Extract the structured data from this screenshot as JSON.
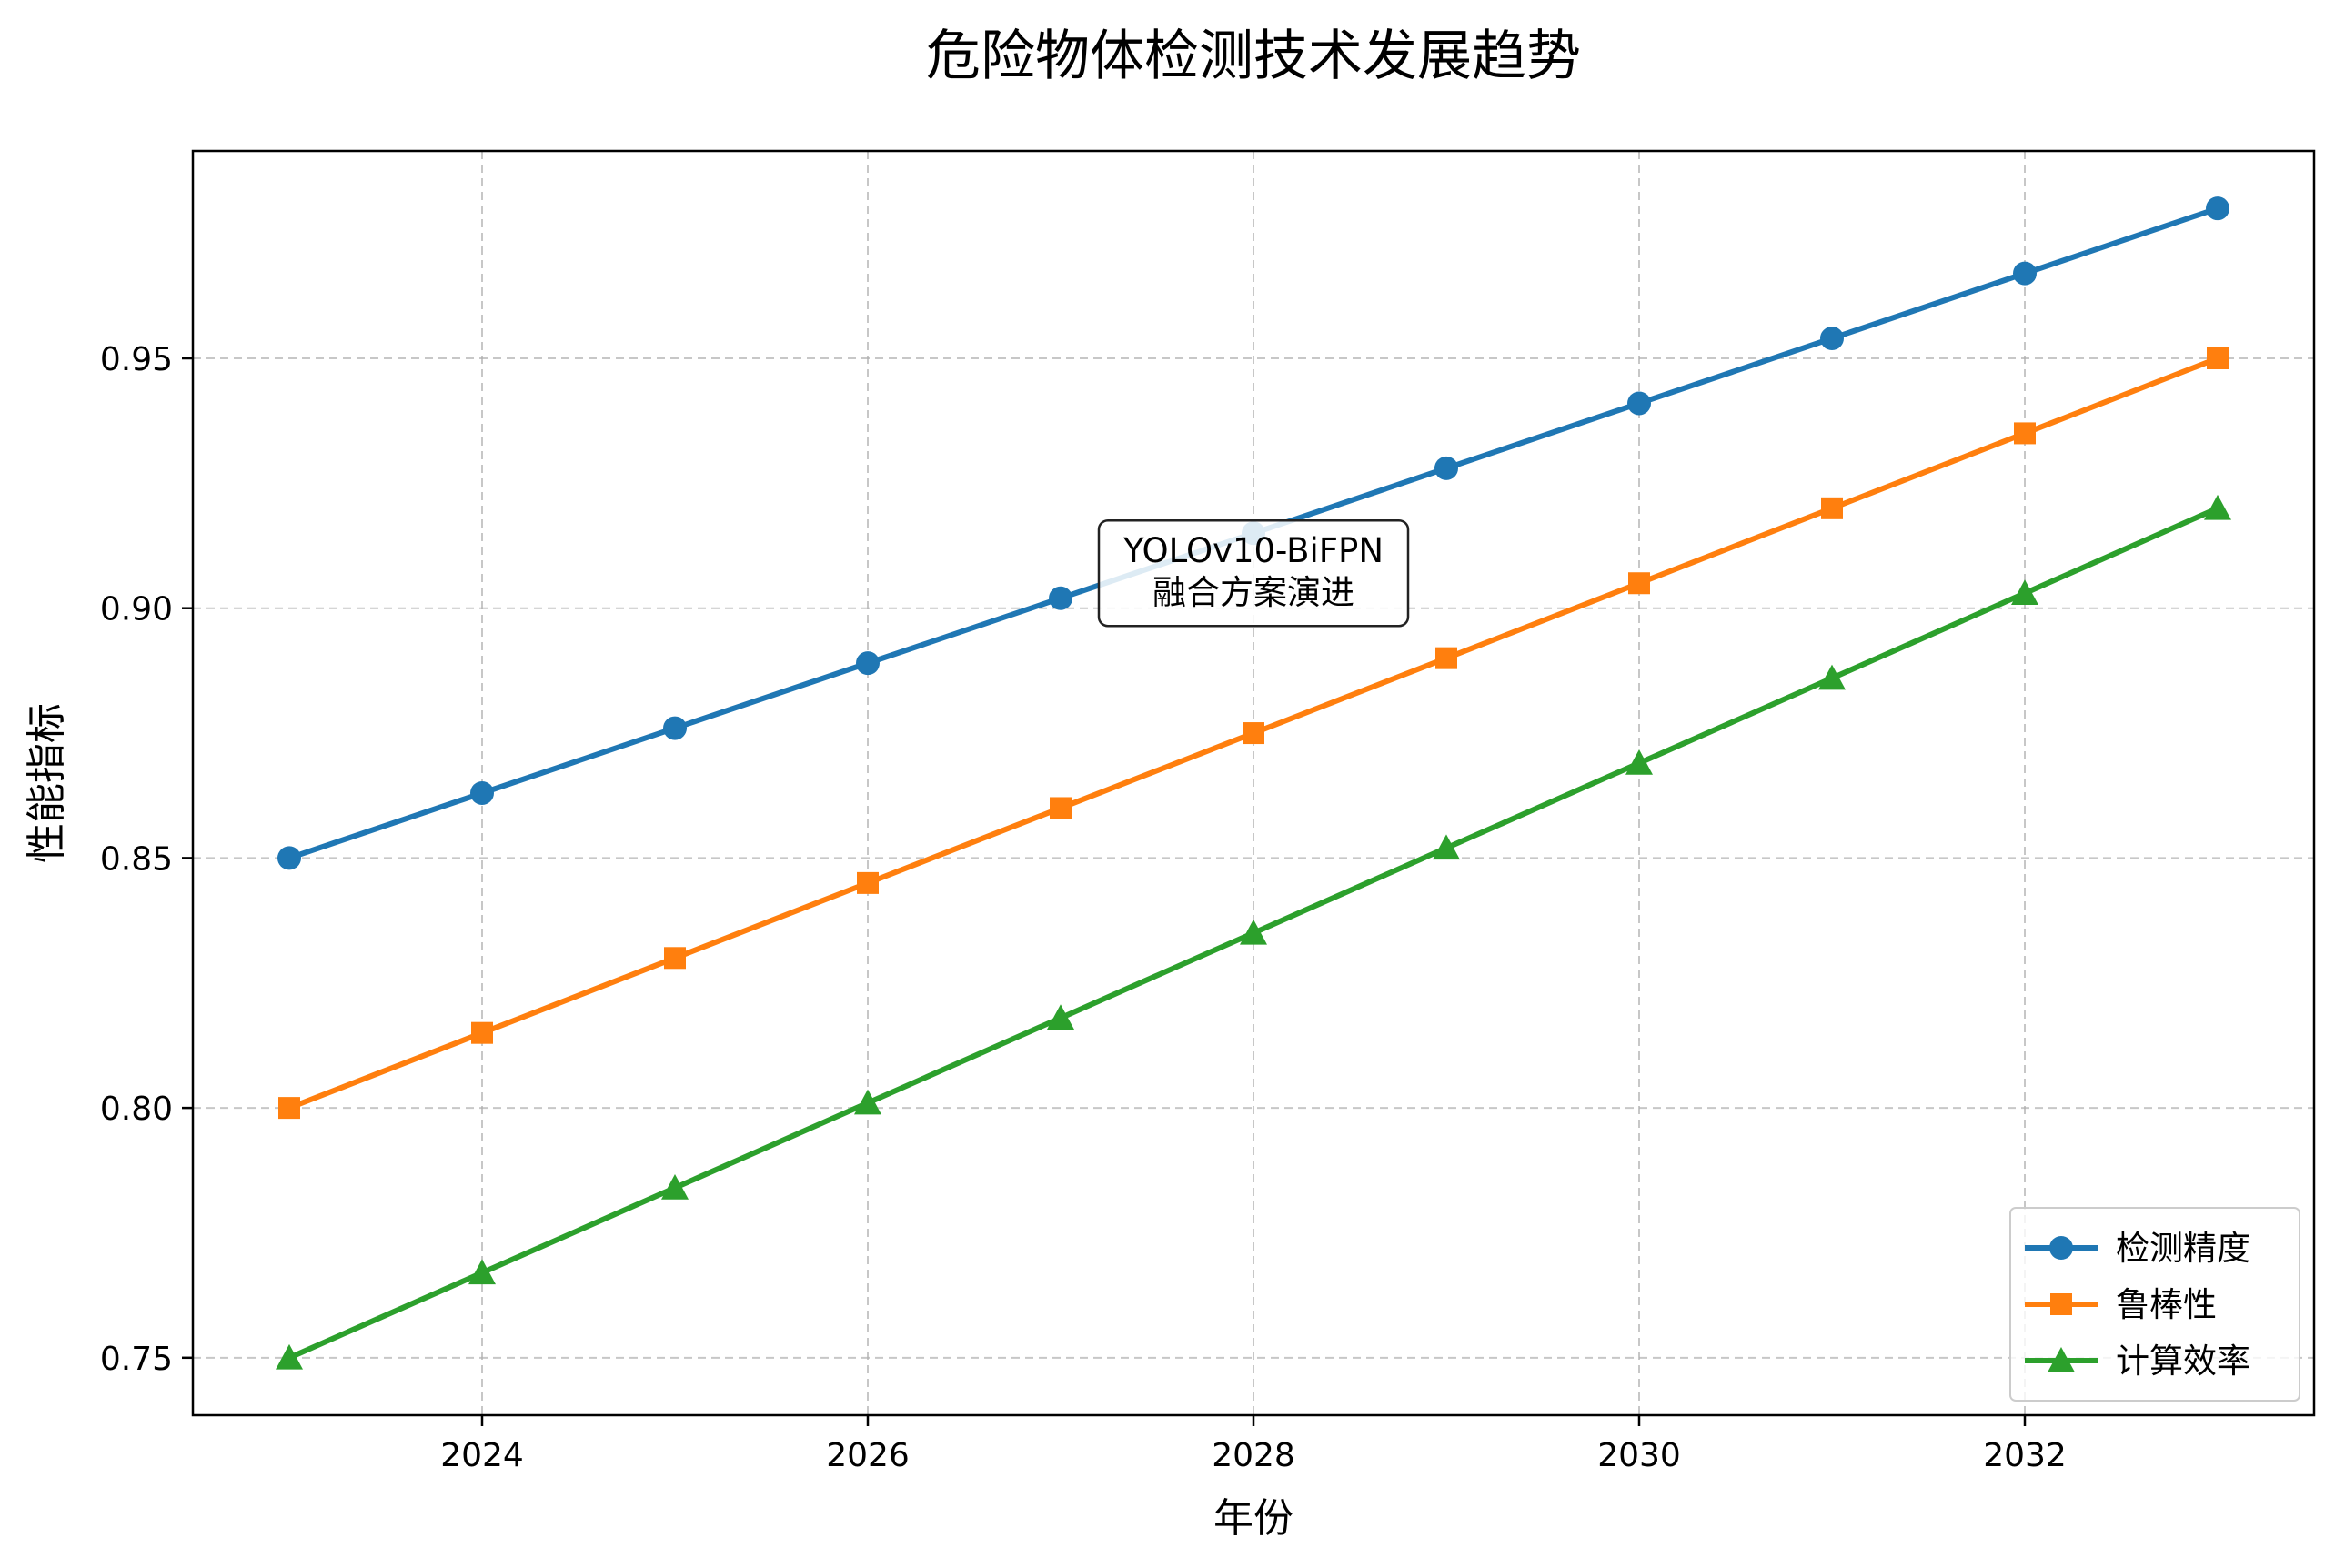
{
  "chart_data": {
    "type": "line",
    "title": "危险物体检测技术发展趋势",
    "xlabel": "年份",
    "ylabel": "性能指标",
    "x": [
      2023,
      2024,
      2025,
      2026,
      2027,
      2028,
      2029,
      2030,
      2031,
      2032,
      2033
    ],
    "xlim": [
      2022.5,
      2033.5
    ],
    "ylim": [
      0.7385,
      0.9915
    ],
    "x_ticks": [
      2024,
      2026,
      2028,
      2030,
      2032
    ],
    "x_tick_labels": [
      "2024",
      "2026",
      "2028",
      "2030",
      "2032"
    ],
    "y_ticks": [
      0.75,
      0.8,
      0.85,
      0.9,
      0.95
    ],
    "y_tick_labels": [
      "0.75",
      "0.80",
      "0.85",
      "0.90",
      "0.95"
    ],
    "grid": true,
    "legend_position": "bottom-right",
    "series": [
      {
        "name": "检测精度",
        "color": "#1f77b4",
        "marker": "circle",
        "values": [
          0.85,
          0.863,
          0.876,
          0.889,
          0.902,
          0.915,
          0.928,
          0.941,
          0.954,
          0.967,
          0.98
        ]
      },
      {
        "name": "鲁棒性",
        "color": "#ff7f0e",
        "marker": "square",
        "values": [
          0.8,
          0.815,
          0.83,
          0.845,
          0.86,
          0.875,
          0.89,
          0.905,
          0.92,
          0.935,
          0.95
        ]
      },
      {
        "name": "计算效率",
        "color": "#2ca02c",
        "marker": "triangle",
        "values": [
          0.75,
          0.767,
          0.784,
          0.801,
          0.818,
          0.835,
          0.852,
          0.869,
          0.886,
          0.903,
          0.92
        ]
      }
    ],
    "annotation": {
      "lines": [
        "YOLOv10-BiFPN",
        "融合方案演进"
      ],
      "x": 2028,
      "y": 0.907
    }
  }
}
